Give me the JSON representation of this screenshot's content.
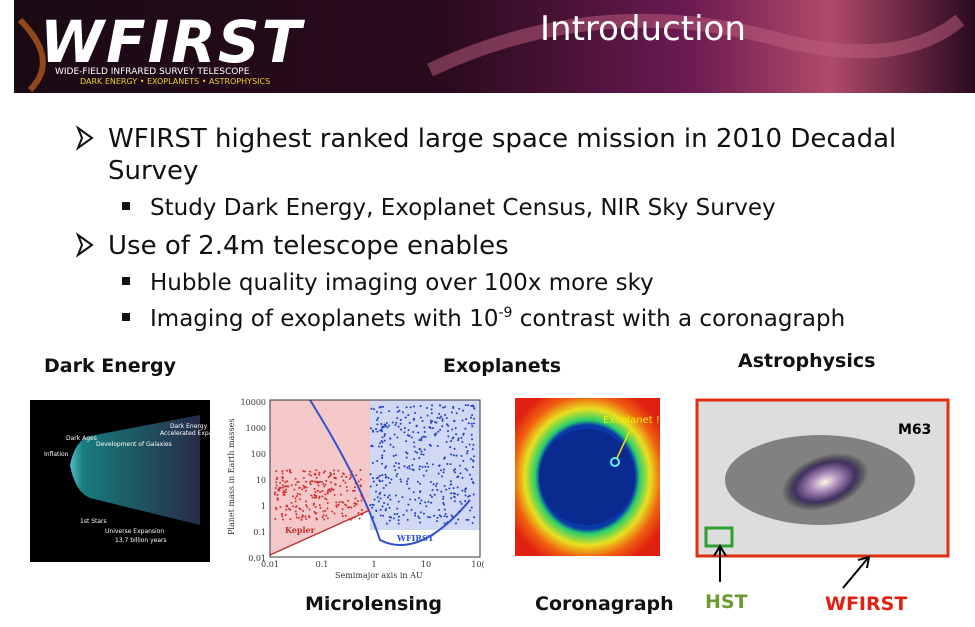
{
  "header": {
    "logo": "WFIRST",
    "logo_subtitle": "Wide-Field Infrared Survey Telescope",
    "logo_tagline": "Dark Energy • Exoplanets • Astrophysics",
    "title": "Introduction"
  },
  "bullets": [
    {
      "text": "WFIRST highest ranked large space mission in 2010 Decadal",
      "text_cont": "Survey",
      "sub": [
        {
          "text": "Study Dark Energy, Exoplanet Census, NIR Sky Survey"
        }
      ]
    },
    {
      "text": "Use of 2.4m telescope enables",
      "sub": [
        {
          "text": "Hubble quality imaging over 100x more sky"
        },
        {
          "text": "Imaging of exoplanets with 10",
          "sup": "-9",
          "rest": " contrast with a coronagraph"
        }
      ]
    }
  ],
  "figures": {
    "dark_energy": {
      "label": "Dark Energy",
      "inner": [
        "Dark Energy",
        "Accelerated Expansion",
        "Dark Ages",
        "Development of Galaxies",
        "Inflation",
        "1st Stars",
        "Universe Expansion",
        "13.7 billion years"
      ]
    },
    "exoplanets": {
      "label": "Exoplanets"
    },
    "microlensing": {
      "label": "Microlensing",
      "yticks": [
        "10000",
        "1000",
        "100",
        "10",
        "1",
        "0.1",
        "0.01"
      ],
      "xticks": [
        "0.01",
        "0.1",
        "1",
        "10",
        "10("
      ],
      "ylabel": "Planet mass in Earth masses",
      "xlabel": "Semimajor axis in AU",
      "kepler": "Kepler",
      "wfirst": "WFIRST"
    },
    "coronagraph": {
      "label": "Coronagraph",
      "planet": "Exoplanet !"
    },
    "astrophysics": {
      "label": "Astrophysics",
      "galaxy": "M63",
      "hst": "HST",
      "wfirst": "WFIRST"
    }
  }
}
